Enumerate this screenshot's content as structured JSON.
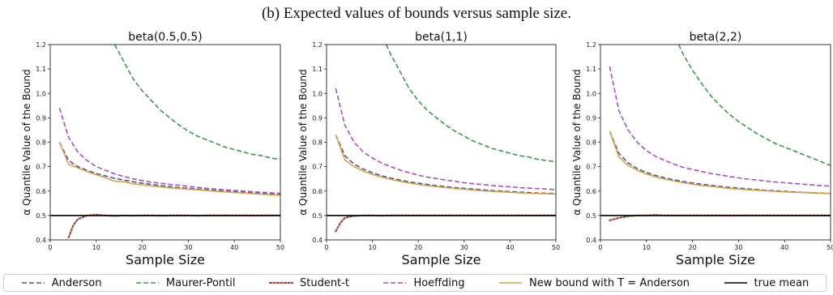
{
  "caption": "(b) Expected values of bounds versus sample size.",
  "legend": [
    {
      "name": "Anderson",
      "color": "#4a5a8a",
      "dash": "6,3",
      "width": 1.6
    },
    {
      "name": "Maurer-Pontil",
      "color": "#3a9a4a",
      "dash": "6,3",
      "width": 1.6
    },
    {
      "name": "Student-t",
      "color": "#a0483c",
      "dash": "2,2.5",
      "width": 2.2
    },
    {
      "name": "Hoeffding",
      "color": "#a64fc4",
      "dash": "6,3",
      "width": 1.6
    },
    {
      "name": "New bound with T = Anderson",
      "color": "#d9a24a",
      "dash": "",
      "width": 1.6
    },
    {
      "name": "true mean",
      "color": "#000000",
      "dash": "",
      "width": 1.6
    }
  ],
  "chart_data": [
    {
      "type": "line",
      "title": "beta(0.5,0.5)",
      "xlabel": "Sample Size",
      "ylabel": "α Quantile Value of the Bound",
      "xlim": [
        0,
        50
      ],
      "ylim": [
        0.4,
        1.2
      ],
      "xticks": [
        "0",
        "10",
        "20",
        "30",
        "40",
        "50"
      ],
      "yticks": [
        "0.4",
        "0.5",
        "0.6",
        "0.7",
        "0.8",
        "0.9",
        "1.0",
        "1.1",
        "1.2"
      ],
      "x": [
        2,
        4,
        6,
        8,
        10,
        12,
        14,
        16,
        18,
        20,
        22,
        24,
        26,
        28,
        30,
        32,
        34,
        36,
        38,
        40,
        42,
        44,
        46,
        48,
        50
      ],
      "series": [
        {
          "name": "Anderson",
          "values": [
            0.8,
            0.725,
            0.7,
            0.685,
            0.672,
            0.662,
            0.652,
            0.645,
            0.638,
            0.632,
            0.627,
            0.622,
            0.618,
            0.614,
            0.611,
            0.608,
            0.605,
            0.602,
            0.6,
            0.597,
            0.595,
            0.593,
            0.591,
            0.589,
            0.588
          ]
        },
        {
          "name": "Maurer-Pontil",
          "x": [
            14,
            16,
            18,
            20,
            22,
            24,
            26,
            28,
            30,
            32,
            34,
            36,
            38,
            40,
            42,
            44,
            46,
            48,
            50
          ],
          "values": [
            1.2,
            1.13,
            1.06,
            1.01,
            0.97,
            0.93,
            0.9,
            0.87,
            0.845,
            0.825,
            0.81,
            0.795,
            0.78,
            0.77,
            0.76,
            0.75,
            0.745,
            0.735,
            0.73
          ]
        },
        {
          "name": "Student-t",
          "x": [
            4,
            5,
            6,
            8,
            10,
            12,
            14,
            16,
            18,
            20,
            22,
            24,
            26,
            28,
            30,
            32,
            34,
            36,
            38,
            40,
            42,
            44,
            46,
            48,
            50
          ],
          "values": [
            0.41,
            0.46,
            0.485,
            0.5,
            0.503,
            0.5,
            0.498,
            0.5,
            0.499,
            0.5,
            0.5,
            0.499,
            0.5,
            0.5,
            0.5,
            0.499,
            0.5,
            0.5,
            0.5,
            0.5,
            0.5,
            0.5,
            0.5,
            0.5,
            0.5
          ]
        },
        {
          "name": "Hoeffding",
          "values": [
            0.94,
            0.82,
            0.76,
            0.725,
            0.7,
            0.685,
            0.67,
            0.66,
            0.65,
            0.643,
            0.636,
            0.632,
            0.627,
            0.624,
            0.619,
            0.615,
            0.611,
            0.608,
            0.605,
            0.602,
            0.6,
            0.597,
            0.595,
            0.593,
            0.59
          ]
        },
        {
          "name": "New bound with T = Anderson",
          "values": [
            0.8,
            0.71,
            0.695,
            0.68,
            0.667,
            0.655,
            0.64,
            0.638,
            0.63,
            0.625,
            0.621,
            0.617,
            0.613,
            0.61,
            0.607,
            0.605,
            0.602,
            0.599,
            0.597,
            0.594,
            0.592,
            0.589,
            0.587,
            0.585,
            0.583
          ]
        },
        {
          "name": "true mean",
          "x": [
            0,
            50
          ],
          "values": [
            0.5,
            0.5
          ]
        }
      ]
    },
    {
      "type": "line",
      "title": "beta(1,1)",
      "xlabel": "Sample Size",
      "ylabel": "α Quantile Value of the Bound",
      "xlim": [
        0,
        50
      ],
      "ylim": [
        0.4,
        1.2
      ],
      "xticks": [
        "0",
        "10",
        "20",
        "30",
        "40",
        "50"
      ],
      "yticks": [
        "0.4",
        "0.5",
        "0.6",
        "0.7",
        "0.8",
        "0.9",
        "1.0",
        "1.1",
        "1.2"
      ],
      "x": [
        2,
        4,
        6,
        8,
        10,
        12,
        14,
        16,
        18,
        20,
        22,
        24,
        26,
        28,
        30,
        32,
        34,
        36,
        38,
        40,
        42,
        44,
        46,
        48,
        50
      ],
      "series": [
        {
          "name": "Anderson",
          "values": [
            0.83,
            0.745,
            0.71,
            0.69,
            0.675,
            0.663,
            0.653,
            0.645,
            0.638,
            0.632,
            0.627,
            0.622,
            0.618,
            0.614,
            0.611,
            0.608,
            0.605,
            0.602,
            0.6,
            0.598,
            0.596,
            0.594,
            0.592,
            0.591,
            0.59
          ]
        },
        {
          "name": "Maurer-Pontil",
          "x": [
            13,
            14,
            16,
            18,
            20,
            22,
            24,
            26,
            28,
            30,
            32,
            34,
            36,
            38,
            40,
            42,
            44,
            46,
            48,
            50
          ],
          "values": [
            1.2,
            1.16,
            1.09,
            1.02,
            0.97,
            0.93,
            0.9,
            0.87,
            0.845,
            0.825,
            0.805,
            0.79,
            0.775,
            0.765,
            0.755,
            0.745,
            0.74,
            0.73,
            0.725,
            0.72
          ]
        },
        {
          "name": "Student-t",
          "x": [
            2,
            3,
            4,
            5,
            6,
            8,
            10,
            12,
            14,
            16,
            18,
            20,
            22,
            24,
            26,
            28,
            30,
            32,
            34,
            36,
            38,
            40,
            42,
            44,
            46,
            48,
            50
          ],
          "values": [
            0.435,
            0.47,
            0.49,
            0.495,
            0.498,
            0.5,
            0.5,
            0.499,
            0.5,
            0.5,
            0.5,
            0.5,
            0.5,
            0.5,
            0.5,
            0.5,
            0.5,
            0.5,
            0.5,
            0.5,
            0.5,
            0.5,
            0.5,
            0.5,
            0.5,
            0.5,
            0.5
          ]
        },
        {
          "name": "Hoeffding",
          "values": [
            1.02,
            0.87,
            0.8,
            0.76,
            0.735,
            0.715,
            0.7,
            0.686,
            0.675,
            0.665,
            0.657,
            0.651,
            0.645,
            0.64,
            0.634,
            0.63,
            0.627,
            0.623,
            0.62,
            0.617,
            0.614,
            0.612,
            0.61,
            0.608,
            0.606
          ]
        },
        {
          "name": "New bound with T = Anderson",
          "values": [
            0.83,
            0.728,
            0.7,
            0.682,
            0.668,
            0.657,
            0.648,
            0.64,
            0.633,
            0.627,
            0.622,
            0.618,
            0.614,
            0.61,
            0.607,
            0.604,
            0.601,
            0.599,
            0.597,
            0.595,
            0.593,
            0.591,
            0.59,
            0.589,
            0.588
          ]
        },
        {
          "name": "true mean",
          "x": [
            0,
            50
          ],
          "values": [
            0.5,
            0.5
          ]
        }
      ]
    },
    {
      "type": "line",
      "title": "beta(2,2)",
      "xlabel": "Sample Size",
      "ylabel": "α Quantile Value of the Bound",
      "xlim": [
        0,
        50
      ],
      "ylim": [
        0.4,
        1.2
      ],
      "xticks": [
        "0",
        "10",
        "20",
        "30",
        "40",
        "50"
      ],
      "yticks": [
        "0.4",
        "0.5",
        "0.6",
        "0.7",
        "0.8",
        "0.9",
        "1.0",
        "1.1",
        "1.2"
      ],
      "x": [
        2,
        4,
        6,
        8,
        10,
        12,
        14,
        16,
        18,
        20,
        22,
        24,
        26,
        28,
        30,
        32,
        34,
        36,
        38,
        40,
        42,
        44,
        46,
        48,
        50
      ],
      "series": [
        {
          "name": "Anderson",
          "values": [
            0.845,
            0.755,
            0.715,
            0.692,
            0.676,
            0.664,
            0.654,
            0.646,
            0.639,
            0.633,
            0.628,
            0.623,
            0.619,
            0.615,
            0.612,
            0.609,
            0.606,
            0.603,
            0.601,
            0.599,
            0.597,
            0.595,
            0.593,
            0.592,
            0.59
          ]
        },
        {
          "name": "Maurer-Pontil",
          "x": [
            17,
            18,
            20,
            22,
            24,
            26,
            28,
            30,
            32,
            34,
            36,
            38,
            40,
            42,
            44,
            46,
            48,
            50
          ],
          "values": [
            1.2,
            1.16,
            1.095,
            1.04,
            0.99,
            0.95,
            0.915,
            0.885,
            0.86,
            0.835,
            0.815,
            0.795,
            0.78,
            0.765,
            0.75,
            0.735,
            0.72,
            0.705
          ]
        },
        {
          "name": "Student-t",
          "x": [
            2,
            4,
            6,
            8,
            10,
            12,
            14,
            16,
            18,
            20,
            22,
            24,
            26,
            28,
            30,
            32,
            34,
            36,
            38,
            40,
            42,
            44,
            46,
            48,
            50
          ],
          "values": [
            0.48,
            0.49,
            0.497,
            0.5,
            0.5,
            0.502,
            0.5,
            0.5,
            0.5,
            0.5,
            0.5,
            0.5,
            0.5,
            0.5,
            0.5,
            0.5,
            0.5,
            0.5,
            0.5,
            0.5,
            0.5,
            0.5,
            0.5,
            0.5,
            0.5
          ]
        },
        {
          "name": "Hoeffding",
          "values": [
            1.11,
            0.93,
            0.85,
            0.8,
            0.765,
            0.742,
            0.725,
            0.71,
            0.697,
            0.688,
            0.68,
            0.672,
            0.666,
            0.66,
            0.654,
            0.649,
            0.645,
            0.641,
            0.637,
            0.634,
            0.631,
            0.628,
            0.625,
            0.622,
            0.62
          ]
        },
        {
          "name": "New bound with T = Anderson",
          "values": [
            0.845,
            0.74,
            0.705,
            0.685,
            0.67,
            0.658,
            0.649,
            0.641,
            0.634,
            0.628,
            0.623,
            0.619,
            0.615,
            0.611,
            0.608,
            0.605,
            0.603,
            0.601,
            0.599,
            0.597,
            0.595,
            0.594,
            0.592,
            0.591,
            0.59
          ]
        },
        {
          "name": "true mean",
          "x": [
            0,
            50
          ],
          "values": [
            0.5,
            0.5
          ]
        }
      ]
    }
  ]
}
